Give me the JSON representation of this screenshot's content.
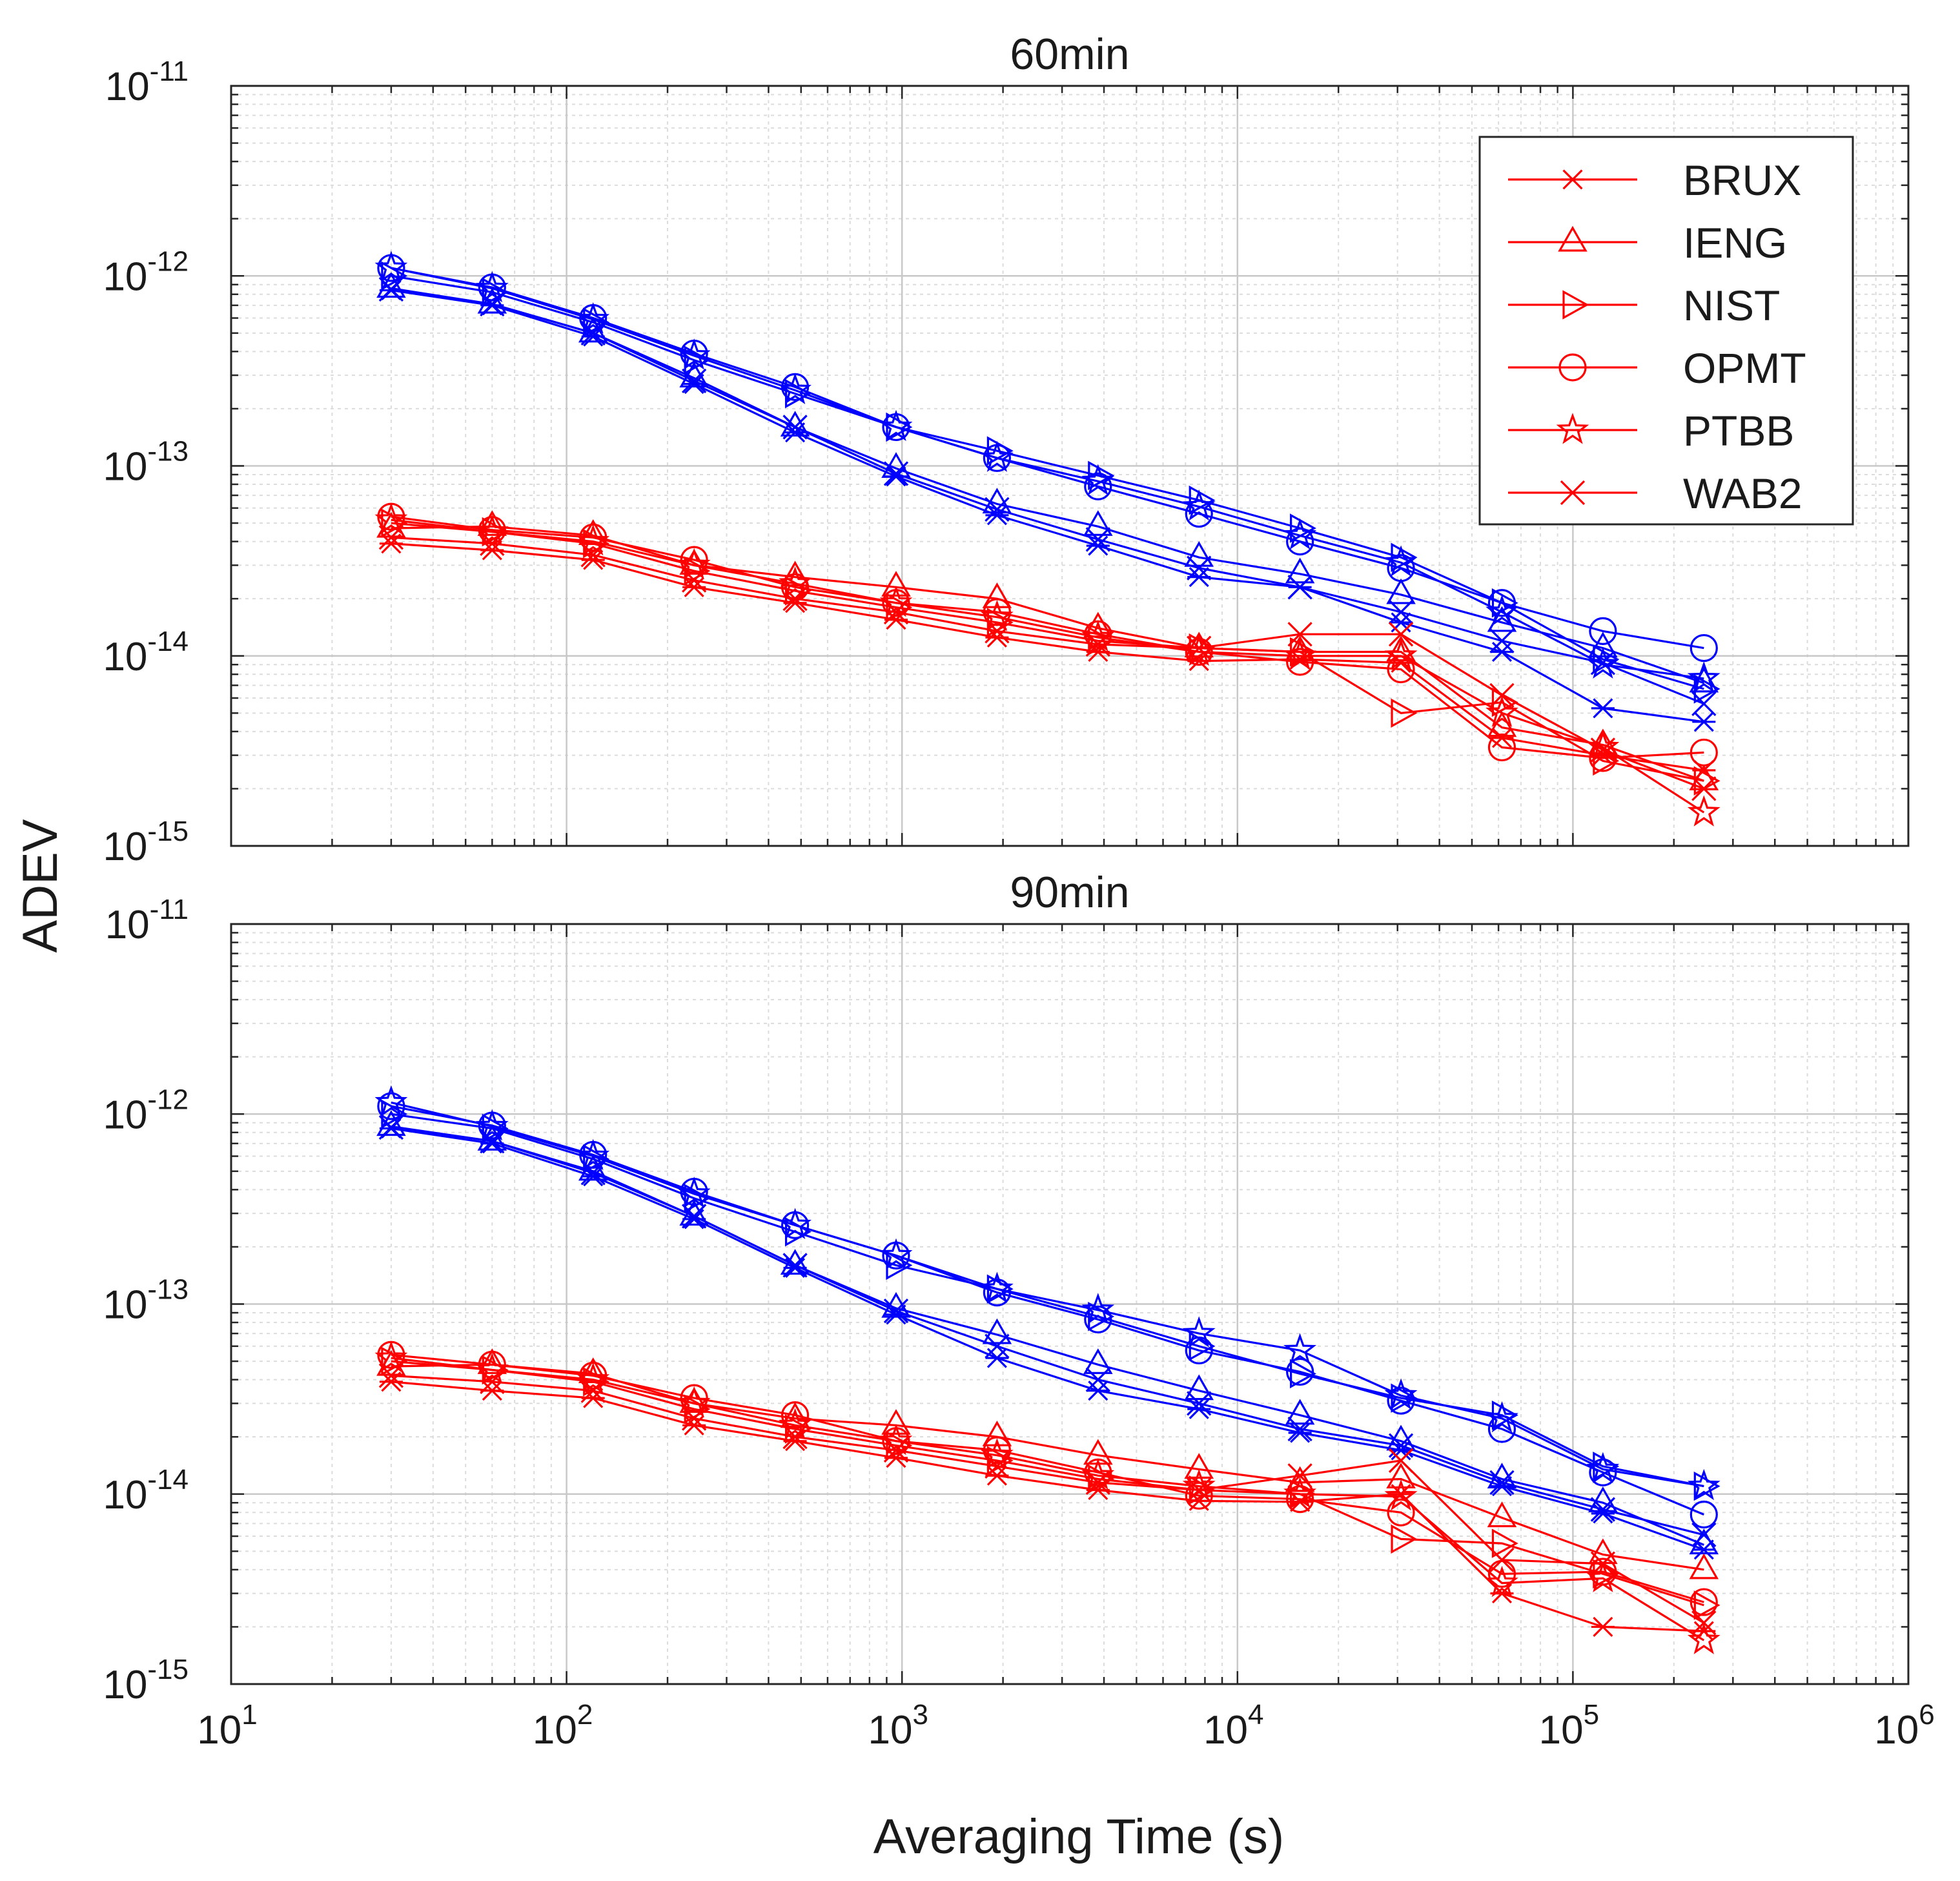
{
  "chart_data": {
    "type": "line",
    "shared_xlabel": "Averaging Time (s)",
    "shared_ylabel": "ADEV",
    "xscale": "log",
    "yscale": "log",
    "x_tick_labels": [
      {
        "base": "10",
        "exp": "1"
      },
      {
        "base": "10",
        "exp": "2"
      },
      {
        "base": "10",
        "exp": "3"
      },
      {
        "base": "10",
        "exp": "4"
      },
      {
        "base": "10",
        "exp": "5"
      },
      {
        "base": "10",
        "exp": "6"
      }
    ],
    "y_tick_labels": [
      {
        "base": "10",
        "exp": "-11"
      },
      {
        "base": "10",
        "exp": "-12"
      },
      {
        "base": "10",
        "exp": "-13"
      },
      {
        "base": "10",
        "exp": "-14"
      },
      {
        "base": "10",
        "exp": "-15"
      }
    ],
    "xlim": [
      10,
      1000000
    ],
    "ylim": [
      1e-15,
      1e-11
    ],
    "grid": true,
    "legend_position": "top-right",
    "legend_color": "#ff0000",
    "legend": [
      {
        "name": "BRUX",
        "marker": "asterisk"
      },
      {
        "name": "IENG",
        "marker": "triangle"
      },
      {
        "name": "NIST",
        "marker": "triangle-right"
      },
      {
        "name": "OPMT",
        "marker": "circle"
      },
      {
        "name": "PTBB",
        "marker": "pentagram"
      },
      {
        "name": "WAB2",
        "marker": "x"
      }
    ],
    "colors": {
      "blue": "#0000ff",
      "red": "#ff0000",
      "grid": "#c8c8c8",
      "axis": "#262626"
    },
    "x": [
      30,
      60,
      120,
      240,
      480,
      960,
      1920,
      3840,
      7680,
      15360,
      30720,
      61440,
      122880,
      245760
    ],
    "panels": [
      {
        "title": "60min",
        "series": [
          {
            "name": "BRUX",
            "color": "blue",
            "marker": "asterisk",
            "values": [
              8.4e-13,
              7e-13,
              4.8e-13,
              2.7e-13,
              1.5e-13,
              8.8e-14,
              5.5e-14,
              3.8e-14,
              2.6e-14,
              2.3e-14,
              1.5e-14,
              1.05e-14,
              5.3e-15,
              4.5e-15
            ]
          },
          {
            "name": "IENG",
            "color": "blue",
            "marker": "triangle",
            "values": [
              8.6e-13,
              7.1e-13,
              5e-13,
              2.9e-13,
              1.6e-13,
              9.7e-14,
              6.3e-14,
              4.8e-14,
              3.3e-14,
              2.7e-14,
              2.1e-14,
              1.5e-14,
              1.1e-14,
              7.2e-15
            ]
          },
          {
            "name": "NIST",
            "color": "blue",
            "marker": "triangle-right",
            "values": [
              1e-12,
              8.2e-13,
              5.7e-13,
              3.6e-13,
              2.4e-13,
              1.6e-13,
              1.2e-13,
              8.9e-14,
              6.6e-14,
              4.7e-14,
              3.3e-14,
              1.9e-14,
              9.6e-15,
              6.7e-15
            ]
          },
          {
            "name": "OPMT",
            "color": "blue",
            "marker": "circle",
            "values": [
              1.1e-12,
              8.7e-13,
              6e-13,
              3.9e-13,
              2.6e-13,
              1.6e-13,
              1.1e-13,
              7.8e-14,
              5.6e-14,
              4e-14,
              2.9e-14,
              1.9e-14,
              1.35e-14,
              1.1e-14
            ]
          },
          {
            "name": "PTBB",
            "color": "blue",
            "marker": "pentagram",
            "values": [
              1.1e-12,
              8.6e-13,
              5.9e-13,
              3.8e-13,
              2.5e-13,
              1.6e-13,
              1.1e-13,
              8.3e-14,
              6.1e-14,
              4.3e-14,
              3.1e-14,
              1.7e-14,
              9e-15,
              7.6e-15
            ]
          },
          {
            "name": "WAB2",
            "color": "blue",
            "marker": "x",
            "values": [
              8.5e-13,
              7.1e-13,
              5e-13,
              2.8e-13,
              1.6e-13,
              9.1e-14,
              5.9e-14,
              4.1e-14,
              2.9e-14,
              2.3e-14,
              1.7e-14,
              1.2e-14,
              9.2e-15,
              5.6e-15
            ]
          },
          {
            "name": "BRUX",
            "color": "red",
            "marker": "asterisk",
            "values": [
              3.9e-14,
              3.6e-14,
              3.2e-14,
              2.3e-14,
              1.9e-14,
              1.55e-14,
              1.25e-14,
              1.05e-14,
              9.4e-15,
              9.6e-15,
              9.2e-15,
              3.7e-15,
              3e-15,
              2.5e-15
            ]
          },
          {
            "name": "IENG",
            "color": "red",
            "marker": "triangle",
            "values": [
              4.7e-14,
              4.8e-14,
              4.3e-14,
              3e-14,
              2.6e-14,
              2.3e-14,
              2e-14,
              1.4e-14,
              1.1e-14,
              1.05e-14,
              1.05e-14,
              4.2e-15,
              3.4e-15,
              2.2e-15
            ]
          },
          {
            "name": "NIST",
            "color": "red",
            "marker": "triangle-right",
            "values": [
              5e-14,
              4.5e-14,
              3.9e-14,
              2.8e-14,
              2.2e-14,
              1.8e-14,
              1.5e-14,
              1.2e-14,
              1.1e-14,
              1.05e-14,
              5e-15,
              5.7e-15,
              2.8e-15,
              2.2e-15
            ]
          },
          {
            "name": "OPMT",
            "color": "red",
            "marker": "circle",
            "values": [
              5.4e-14,
              4.6e-14,
              4.2e-14,
              3.2e-14,
              2.3e-14,
              1.9e-14,
              1.7e-14,
              1.3e-14,
              1.05e-14,
              9.3e-15,
              8.5e-15,
              3.3e-15,
              2.9e-15,
              3.1e-15
            ]
          },
          {
            "name": "PTBB",
            "color": "red",
            "marker": "pentagram",
            "values": [
              5.2e-14,
              4.5e-14,
              4e-14,
              3e-14,
              2.4e-14,
              1.9e-14,
              1.6e-14,
              1.25e-14,
              1.05e-14,
              1e-14,
              1e-14,
              5e-15,
              3.3e-15,
              1.5e-15
            ]
          },
          {
            "name": "WAB2",
            "color": "red",
            "marker": "x",
            "values": [
              4.2e-14,
              3.9e-14,
              3.4e-14,
              2.5e-14,
              2e-14,
              1.7e-14,
              1.35e-14,
              1.15e-14,
              1.1e-14,
              1.3e-14,
              1.3e-14,
              6.2e-15,
              3.2e-15,
              2e-15
            ]
          }
        ]
      },
      {
        "title": "90min",
        "series": [
          {
            "name": "BRUX",
            "color": "blue",
            "marker": "asterisk",
            "values": [
              8.4e-13,
              7e-13,
              4.7e-13,
              2.8e-13,
              1.55e-13,
              8.8e-14,
              5.2e-14,
              3.5e-14,
              2.8e-14,
              2.1e-14,
              1.7e-14,
              1.1e-14,
              7.9e-15,
              5.1e-15
            ]
          },
          {
            "name": "IENG",
            "color": "blue",
            "marker": "triangle",
            "values": [
              8.6e-13,
              7.2e-13,
              5e-13,
              2.9e-13,
              1.6e-13,
              9.5e-14,
              6.9e-14,
              4.8e-14,
              3.5e-14,
              2.6e-14,
              1.9e-14,
              1.2e-14,
              9e-15,
              5.4e-15
            ]
          },
          {
            "name": "NIST",
            "color": "blue",
            "marker": "triangle-right",
            "values": [
              1e-12,
              8.4e-13,
              5.8e-13,
              3.6e-13,
              2.4e-13,
              1.6e-13,
              1.2e-13,
              8.6e-14,
              6e-14,
              4.3e-14,
              3.2e-14,
              2.6e-14,
              1.4e-14,
              1.1e-14
            ]
          },
          {
            "name": "OPMT",
            "color": "blue",
            "marker": "circle",
            "values": [
              1.1e-12,
              8.7e-13,
              6.1e-13,
              3.9e-13,
              2.6e-13,
              1.8e-13,
              1.15e-13,
              8.3e-14,
              5.7e-14,
              4.4e-14,
              3.1e-14,
              2.2e-14,
              1.3e-14,
              7.8e-15
            ]
          },
          {
            "name": "PTBB",
            "color": "blue",
            "marker": "pentagram",
            "values": [
              1.15e-12,
              8.6e-13,
              6e-13,
              3.8e-13,
              2.6e-13,
              1.8e-13,
              1.2e-13,
              9.3e-14,
              7e-14,
              5.7e-14,
              3.3e-14,
              2.5e-14,
              1.35e-14,
              1.1e-14
            ]
          },
          {
            "name": "WAB2",
            "color": "blue",
            "marker": "x",
            "values": [
              8.5e-13,
              7.2e-13,
              4.9e-13,
              2.9e-13,
              1.6e-13,
              9.2e-14,
              6e-14,
              4e-14,
              3e-14,
              2.2e-14,
              1.8e-14,
              1.15e-14,
              8.3e-15,
              6.1e-15
            ]
          },
          {
            "name": "BRUX",
            "color": "red",
            "marker": "asterisk",
            "values": [
              3.9e-14,
              3.5e-14,
              3.2e-14,
              2.3e-14,
              1.9e-14,
              1.55e-14,
              1.25e-14,
              1.05e-14,
              9.2e-15,
              9.1e-15,
              1e-14,
              3e-15,
              2e-15,
              1.9e-15
            ]
          },
          {
            "name": "IENG",
            "color": "red",
            "marker": "triangle",
            "values": [
              4.7e-14,
              4.8e-14,
              4.3e-14,
              3e-14,
              2.5e-14,
              2.3e-14,
              2e-14,
              1.6e-14,
              1.35e-14,
              1.15e-14,
              1.2e-14,
              7.5e-15,
              4.8e-15,
              4e-15
            ]
          },
          {
            "name": "NIST",
            "color": "red",
            "marker": "triangle-right",
            "values": [
              5e-14,
              4.5e-14,
              3.9e-14,
              2.8e-14,
              2.2e-14,
              1.8e-14,
              1.5e-14,
              1.2e-14,
              1.05e-14,
              1e-14,
              5.8e-15,
              5.5e-15,
              3.8e-15,
              2.6e-15
            ]
          },
          {
            "name": "OPMT",
            "color": "red",
            "marker": "circle",
            "values": [
              5.4e-14,
              4.8e-14,
              4.2e-14,
              3.2e-14,
              2.6e-14,
              1.9e-14,
              1.7e-14,
              1.3e-14,
              9.8e-15,
              9.4e-15,
              8e-15,
              3.8e-15,
              3.9e-15,
              2.7e-15
            ]
          },
          {
            "name": "PTBB",
            "color": "red",
            "marker": "pentagram",
            "values": [
              5.2e-14,
              4.5e-14,
              4e-14,
              3e-14,
              2.3e-14,
              1.9e-14,
              1.6e-14,
              1.25e-14,
              1.1e-14,
              1e-14,
              9.7e-15,
              3.4e-15,
              3.6e-15,
              1.7e-15
            ]
          },
          {
            "name": "WAB2",
            "color": "red",
            "marker": "x",
            "values": [
              4.2e-14,
              3.9e-14,
              3.5e-14,
              2.5e-14,
              2e-14,
              1.7e-14,
              1.4e-14,
              1.15e-14,
              1.05e-14,
              1.25e-14,
              1.5e-14,
              4.5e-15,
              4.3e-15,
              2.1e-15
            ]
          }
        ]
      }
    ]
  }
}
